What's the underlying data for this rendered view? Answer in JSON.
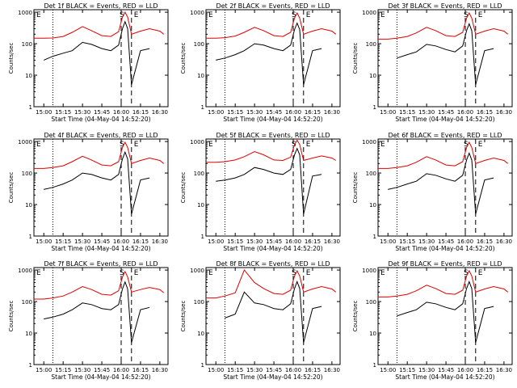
{
  "colors": {
    "events": "#000000",
    "lld": "#e00000",
    "axis": "#000000"
  },
  "shared": {
    "xlabel": "Start Time (04-May-04 14:52:20)",
    "ylabel": "Counts/sec",
    "x_ticks": [
      "15:00",
      "15:15",
      "15:30",
      "15:45",
      "16:00",
      "16:15",
      "16:30"
    ],
    "y_ticks": [
      "1",
      "10",
      "100",
      "1000"
    ],
    "xlim_minutes_from_start": [
      0,
      104
    ],
    "ylim": [
      1,
      1200
    ],
    "y_scale": "log",
    "markers": {
      "left": "E",
      "middle": "S",
      "right": "E"
    }
  },
  "chart_data": [
    {
      "type": "line",
      "title": "Det 1f BLACK = Events, RED = LLD",
      "x": [
        "14:52:20",
        "15:00",
        "15:07",
        "15:15",
        "15:22",
        "15:30",
        "15:37",
        "15:45",
        "15:52",
        "15:58",
        "16:01",
        "16:03",
        "16:05",
        "16:08",
        "16:15",
        "16:22",
        "16:30",
        "16:33"
      ],
      "series": [
        {
          "name": "LLD",
          "values": [
            150,
            150,
            152,
            170,
            230,
            350,
            260,
            180,
            170,
            240,
            700,
            1000,
            700,
            200,
            250,
            300,
            250,
            200
          ]
        },
        {
          "name": "Events",
          "values": [
            null,
            30,
            40,
            50,
            60,
            110,
            95,
            70,
            60,
            90,
            300,
            500,
            300,
            5,
            60,
            70,
            null,
            null
          ]
        }
      ]
    },
    {
      "type": "line",
      "title": "Det 2f BLACK = Events, RED = LLD",
      "x": [
        "14:52:20",
        "15:00",
        "15:07",
        "15:15",
        "15:22",
        "15:30",
        "15:37",
        "15:45",
        "15:52",
        "15:58",
        "16:01",
        "16:03",
        "16:05",
        "16:08",
        "16:15",
        "16:22",
        "16:30",
        "16:33"
      ],
      "series": [
        {
          "name": "LLD",
          "values": [
            150,
            150,
            155,
            175,
            230,
            330,
            260,
            180,
            170,
            230,
            650,
            950,
            650,
            200,
            250,
            300,
            250,
            200
          ]
        },
        {
          "name": "Events",
          "values": [
            null,
            30,
            35,
            45,
            60,
            100,
            90,
            70,
            60,
            90,
            280,
            450,
            280,
            5,
            60,
            70,
            null,
            null
          ]
        }
      ]
    },
    {
      "type": "line",
      "title": "Det 3f BLACK = Events, RED = LLD",
      "x": [
        "14:52:20",
        "15:00",
        "15:07",
        "15:15",
        "15:22",
        "15:30",
        "15:37",
        "15:45",
        "15:52",
        "15:58",
        "16:01",
        "16:03",
        "16:05",
        "16:08",
        "16:15",
        "16:22",
        "16:30",
        "16:33"
      ],
      "series": [
        {
          "name": "LLD",
          "values": [
            140,
            140,
            150,
            170,
            220,
            330,
            260,
            180,
            170,
            230,
            650,
            950,
            650,
            200,
            250,
            300,
            250,
            200
          ]
        },
        {
          "name": "Events",
          "values": [
            null,
            null,
            35,
            45,
            55,
            95,
            85,
            65,
            55,
            85,
            260,
            430,
            260,
            5,
            60,
            70,
            null,
            null
          ]
        }
      ]
    },
    {
      "type": "line",
      "title": "Det 4f BLACK = Events, RED = LLD",
      "x": [
        "14:52:20",
        "15:00",
        "15:07",
        "15:15",
        "15:22",
        "15:30",
        "15:37",
        "15:45",
        "15:52",
        "15:58",
        "16:01",
        "16:03",
        "16:05",
        "16:08",
        "16:15",
        "16:22",
        "16:30",
        "16:33"
      ],
      "series": [
        {
          "name": "LLD",
          "values": [
            140,
            140,
            150,
            170,
            230,
            340,
            260,
            180,
            170,
            230,
            650,
            950,
            650,
            200,
            250,
            300,
            250,
            200
          ]
        },
        {
          "name": "Events",
          "values": [
            null,
            30,
            35,
            45,
            60,
            100,
            90,
            70,
            60,
            90,
            280,
            460,
            280,
            5,
            60,
            70,
            null,
            null
          ]
        }
      ]
    },
    {
      "type": "line",
      "title": "Det 5f BLACK = Events, RED = LLD",
      "x": [
        "14:52:20",
        "15:00",
        "15:07",
        "15:15",
        "15:22",
        "15:30",
        "15:37",
        "15:45",
        "15:52",
        "15:58",
        "16:01",
        "16:03",
        "16:05",
        "16:08",
        "16:15",
        "16:22",
        "16:30",
        "16:33"
      ],
      "series": [
        {
          "name": "LLD",
          "values": [
            220,
            220,
            230,
            260,
            330,
            480,
            380,
            260,
            250,
            320,
            800,
            1100,
            800,
            250,
            300,
            350,
            300,
            250
          ]
        },
        {
          "name": "Events",
          "values": [
            null,
            55,
            60,
            70,
            90,
            150,
            130,
            100,
            90,
            130,
            380,
            600,
            380,
            5,
            80,
            90,
            null,
            null
          ]
        }
      ]
    },
    {
      "type": "line",
      "title": "Det 6f BLACK = Events, RED = LLD",
      "x": [
        "14:52:20",
        "15:00",
        "15:07",
        "15:15",
        "15:22",
        "15:30",
        "15:37",
        "15:45",
        "15:52",
        "15:58",
        "16:01",
        "16:03",
        "16:05",
        "16:08",
        "16:15",
        "16:22",
        "16:30",
        "16:33"
      ],
      "series": [
        {
          "name": "LLD",
          "values": [
            140,
            140,
            150,
            170,
            220,
            330,
            260,
            180,
            170,
            230,
            650,
            950,
            650,
            200,
            250,
            300,
            250,
            200
          ]
        },
        {
          "name": "Events",
          "values": [
            null,
            30,
            35,
            45,
            55,
            95,
            85,
            65,
            55,
            85,
            260,
            430,
            260,
            5,
            60,
            70,
            null,
            null
          ]
        }
      ]
    },
    {
      "type": "line",
      "title": "Det 7f BLACK = Events, RED = LLD",
      "x": [
        "14:52:20",
        "15:00",
        "15:07",
        "15:15",
        "15:22",
        "15:30",
        "15:37",
        "15:45",
        "15:52",
        "15:58",
        "16:01",
        "16:03",
        "16:05",
        "16:08",
        "16:15",
        "16:22",
        "16:30",
        "16:33"
      ],
      "series": [
        {
          "name": "LLD",
          "values": [
            120,
            120,
            130,
            150,
            200,
            300,
            240,
            170,
            160,
            220,
            600,
            900,
            600,
            200,
            240,
            280,
            240,
            190
          ]
        },
        {
          "name": "Events",
          "values": [
            null,
            28,
            32,
            40,
            55,
            90,
            80,
            60,
            55,
            80,
            250,
            420,
            250,
            5,
            55,
            65,
            null,
            null
          ]
        }
      ]
    },
    {
      "type": "line",
      "title": "Det 8f BLACK = Events, RED = LLD",
      "x": [
        "14:52:20",
        "15:00",
        "15:07",
        "15:15",
        "15:22",
        "15:30",
        "15:37",
        "15:45",
        "15:52",
        "15:58",
        "16:01",
        "16:03",
        "16:05",
        "16:08",
        "16:15",
        "16:22",
        "16:30",
        "16:33"
      ],
      "series": [
        {
          "name": "LLD",
          "values": [
            130,
            130,
            150,
            190,
            1000,
            400,
            260,
            180,
            170,
            230,
            650,
            950,
            650,
            200,
            250,
            300,
            250,
            200
          ]
        },
        {
          "name": "Events",
          "values": [
            null,
            null,
            30,
            40,
            200,
            90,
            80,
            60,
            55,
            85,
            260,
            430,
            260,
            5,
            60,
            70,
            null,
            null
          ]
        }
      ]
    },
    {
      "type": "line",
      "title": "Det 9f BLACK = Events, RED = LLD",
      "x": [
        "14:52:20",
        "15:00",
        "15:07",
        "15:15",
        "15:22",
        "15:30",
        "15:37",
        "15:45",
        "15:52",
        "15:58",
        "16:01",
        "16:03",
        "16:05",
        "16:08",
        "16:15",
        "16:22",
        "16:30",
        "16:33"
      ],
      "series": [
        {
          "name": "LLD",
          "values": [
            140,
            140,
            150,
            170,
            220,
            330,
            260,
            180,
            170,
            230,
            650,
            950,
            650,
            200,
            250,
            300,
            250,
            200
          ]
        },
        {
          "name": "Events",
          "values": [
            null,
            null,
            35,
            45,
            55,
            95,
            85,
            65,
            55,
            85,
            260,
            430,
            260,
            5,
            60,
            70,
            null,
            null
          ]
        }
      ]
    }
  ]
}
